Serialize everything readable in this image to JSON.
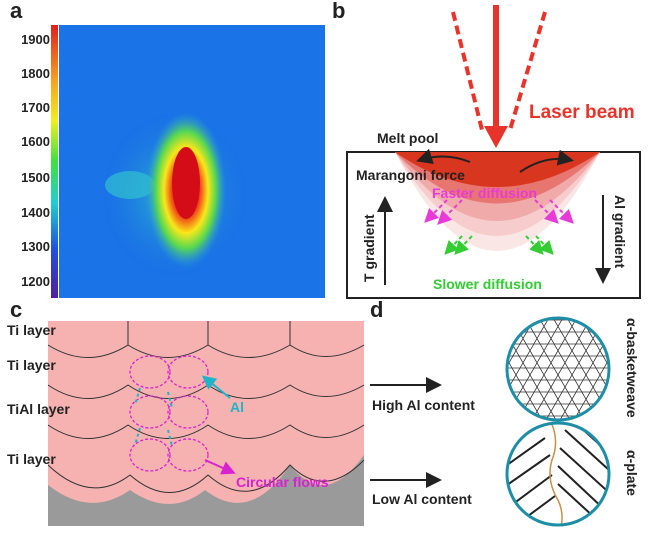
{
  "panels": {
    "a": {
      "letter": "a",
      "colorbar_ticks": [
        "1900",
        "1800",
        "1700",
        "1600",
        "1500",
        "1400",
        "1300",
        "1200"
      ]
    },
    "b": {
      "letter": "b",
      "laser_label": "Laser beam",
      "melt_pool_label": "Melt pool",
      "marangoni_label": "Marangoni force",
      "faster_label": "Faster diffusion",
      "slower_label": "Slower diffusion",
      "t_gradient_label": "T gradient",
      "al_gradient_label": "Al gradient",
      "colors": {
        "laser": "#e8332a",
        "faster": "#e83ad8",
        "slower": "#33cc33"
      }
    },
    "c": {
      "letter": "c",
      "layers": [
        "Ti layer",
        "Ti layer",
        "TiAl layer",
        "Ti layer"
      ],
      "al_label": "Al",
      "flows_label": "Circular flows",
      "colors": {
        "layer": "#f6b1b1",
        "substrate": "#9a9a9a",
        "al": "#1fb5c8",
        "flows": "#d822d0"
      }
    },
    "d": {
      "letter": "d",
      "high_label": "High Al content",
      "low_label": "Low Al content",
      "basketweave_label": "α-basketweave",
      "plate_label": "α-plate",
      "colors": {
        "circle": "#1e8ea7"
      }
    }
  }
}
